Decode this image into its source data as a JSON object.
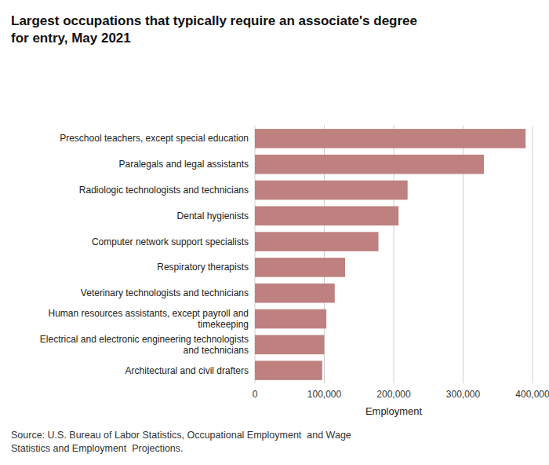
{
  "chart_data": {
    "type": "bar",
    "orientation": "horizontal",
    "title": "Largest occupations that typically require an associate's degree\nfor entry, May 2021",
    "categories": [
      "Architectural and civil drafters",
      "Electrical and electronic engineering technologists\nand technicians",
      "Human resources assistants, except payroll and\ntimekeeping",
      "Veterinary technologists and technicians",
      "Respiratory therapists",
      "Computer network support specialists",
      "Dental hygienists",
      "Radiologic technologists and technicians",
      "Paralegals and legal assistants",
      "Preschool teachers, except special education"
    ],
    "values": [
      97000,
      100000,
      103000,
      115000,
      130000,
      178000,
      207000,
      220000,
      330000,
      390000
    ],
    "color": "#bf8080",
    "xlabel": "Employment",
    "xlim": [
      0,
      400000
    ],
    "xticks": [
      0,
      {
        "value": 100000,
        "label": "100,000"
      },
      {
        "value": 200000,
        "label": "200,000"
      },
      {
        "value": 300000,
        "label": "300,000"
      },
      {
        "value": 400000,
        "label": "400,000"
      }
    ],
    "grid": true,
    "source": "Source: U.S. Bureau of Labor Statistics, Occupational Employment  and Wage\nStatistics and Employment  Projections."
  }
}
